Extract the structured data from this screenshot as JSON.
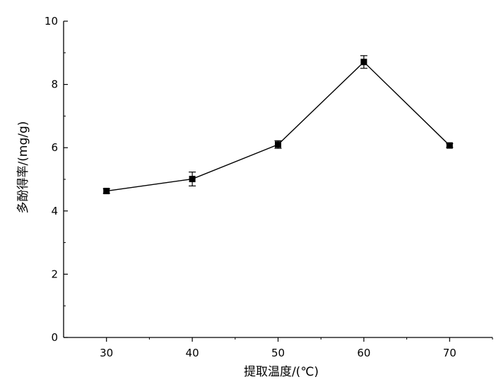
{
  "chart_data": {
    "type": "line",
    "title": "",
    "xlabel": "提取温度/(℃)",
    "ylabel": "多酚得率/(mg/g)",
    "x": [
      30,
      40,
      50,
      60,
      70
    ],
    "series": [
      {
        "values": [
          4.63,
          5.01,
          6.1,
          8.71,
          6.07
        ],
        "errors": [
          0.07,
          0.22,
          0.12,
          0.2,
          0.06
        ]
      }
    ],
    "xlim": [
      25,
      75
    ],
    "ylim": [
      0,
      10
    ],
    "x_ticks": [
      30,
      40,
      50,
      60,
      70
    ],
    "y_ticks": [
      0,
      2,
      4,
      6,
      8,
      10
    ],
    "x_tick_labels": [
      "30",
      "40",
      "50",
      "60",
      "70"
    ],
    "y_tick_labels": [
      "0",
      "2",
      "4",
      "6",
      "8",
      "10"
    ],
    "grid": false,
    "legend": "none",
    "marker": "filled-square",
    "colors": {
      "line": "#000000",
      "marker": "#000000",
      "axis": "#000000"
    }
  }
}
